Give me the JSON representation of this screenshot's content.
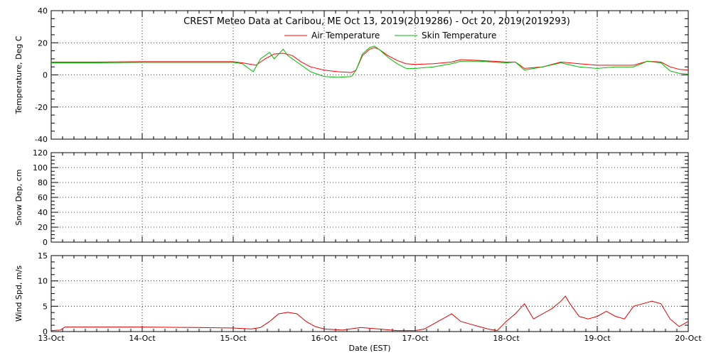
{
  "chart_data": {
    "type": "line",
    "title": "CREST Meteo Data at Caribou, ME   Oct 13, 2019(2019286) - Oct 20, 2019(2019293)",
    "xlabel": "Date (EST)",
    "x_tick_labels": [
      "13-Oct",
      "14-Oct",
      "15-Oct",
      "16-Oct",
      "17-Oct",
      "18-Oct",
      "19-Oct",
      "20-Oct"
    ],
    "xlim": [
      0,
      7
    ],
    "colors": {
      "air": "#ff0000",
      "skin": "#00bb00",
      "wind": "#dd0000"
    },
    "panels": [
      {
        "id": "temperature",
        "ylabel": "Temperature, Deg C",
        "ylim": [
          -40,
          40
        ],
        "yticks": [
          "-40",
          "-20",
          "0",
          "20",
          "40"
        ],
        "legend": [
          "Air Temperature",
          "Skin Temperature"
        ],
        "series": [
          {
            "name": "Air Temperature",
            "x": [
              0,
              0.5,
              1,
              1.5,
              2,
              2.1,
              2.25,
              2.35,
              2.45,
              2.55,
              2.65,
              2.75,
              2.85,
              3,
              3.15,
              3.3,
              3.35,
              3.42,
              3.5,
              3.55,
              3.6,
              3.7,
              3.8,
              3.9,
              4,
              4.2,
              4.4,
              4.5,
              4.7,
              5,
              5.1,
              5.2,
              5.4,
              5.6,
              5.8,
              6,
              6.2,
              6.4,
              6.55,
              6.7,
              6.8,
              6.9,
              7
            ],
            "y": [
              8,
              8,
              8.2,
              8.2,
              8.2,
              7.5,
              6,
              10,
              13,
              13.5,
              12,
              8,
              5,
              3,
              2,
              1.5,
              3,
              12,
              16,
              17,
              16,
              12,
              9,
              7,
              6.5,
              7,
              8,
              9.5,
              9,
              8,
              8,
              4,
              5,
              8,
              7,
              6,
              6,
              6,
              8.5,
              8,
              5,
              3.5,
              3
            ]
          },
          {
            "name": "Skin Temperature",
            "x": [
              0,
              0.5,
              1,
              1.5,
              2,
              2.1,
              2.22,
              2.3,
              2.4,
              2.45,
              2.5,
              2.55,
              2.6,
              2.7,
              2.85,
              3,
              3.15,
              3.3,
              3.35,
              3.42,
              3.5,
              3.55,
              3.6,
              3.7,
              3.8,
              3.9,
              4,
              4.2,
              4.4,
              4.5,
              4.7,
              5,
              5.1,
              5.2,
              5.4,
              5.6,
              5.8,
              6,
              6.2,
              6.4,
              6.55,
              6.7,
              6.8,
              6.9,
              7
            ],
            "y": [
              7.5,
              7.5,
              7.8,
              7.8,
              7.8,
              7,
              2,
              10,
              14,
              10,
              13,
              16,
              12,
              8,
              2,
              -1,
              -1.5,
              -1,
              3,
              13,
              17,
              18,
              16,
              11,
              7,
              4,
              4,
              5,
              7,
              8.5,
              8.5,
              7.5,
              8,
              3,
              5,
              7.5,
              5,
              4,
              5,
              5,
              8.5,
              7.5,
              2.5,
              1,
              0.5
            ]
          }
        ]
      },
      {
        "id": "snow-depth",
        "ylabel": "Snow Dep, cm",
        "ylim": [
          0,
          120
        ],
        "yticks": [
          "0",
          "20",
          "40",
          "60",
          "80",
          "100",
          "120"
        ],
        "series": []
      },
      {
        "id": "wind-speed",
        "ylabel": "Wind Spd, m/s",
        "ylim": [
          0,
          15
        ],
        "yticks": [
          "0",
          "5",
          "10",
          "15"
        ],
        "series": [
          {
            "name": "Wind Speed",
            "x": [
              0,
              0.1,
              0.15,
              1,
              1.6,
              2,
              2.2,
              2.3,
              2.4,
              2.5,
              2.6,
              2.7,
              2.8,
              2.9,
              3,
              3.2,
              3.4,
              3.6,
              3.8,
              4,
              4.1,
              4.2,
              4.3,
              4.4,
              4.5,
              4.6,
              4.7,
              4.8,
              4.9,
              5,
              5.1,
              5.2,
              5.25,
              5.3,
              5.4,
              5.5,
              5.6,
              5.65,
              5.7,
              5.8,
              5.9,
              6,
              6.1,
              6.2,
              6.3,
              6.4,
              6.5,
              6.6,
              6.7,
              6.8,
              6.9,
              7
            ],
            "y": [
              0.2,
              0.3,
              0.9,
              0.9,
              0.8,
              0.7,
              0.5,
              0.8,
              2,
              3.5,
              3.8,
              3.5,
              2,
              1,
              0.5,
              0.3,
              0.8,
              0.5,
              0.2,
              0.2,
              0.5,
              1.5,
              2.5,
              3.5,
              2,
              1.5,
              1,
              0.5,
              0.2,
              2,
              3.5,
              5.5,
              4,
              2.5,
              3.5,
              4.5,
              6,
              7,
              5.5,
              3,
              2.5,
              3,
              4,
              3,
              2.5,
              5,
              5.5,
              6,
              5.5,
              2.5,
              1,
              2
            ]
          }
        ]
      }
    ]
  }
}
